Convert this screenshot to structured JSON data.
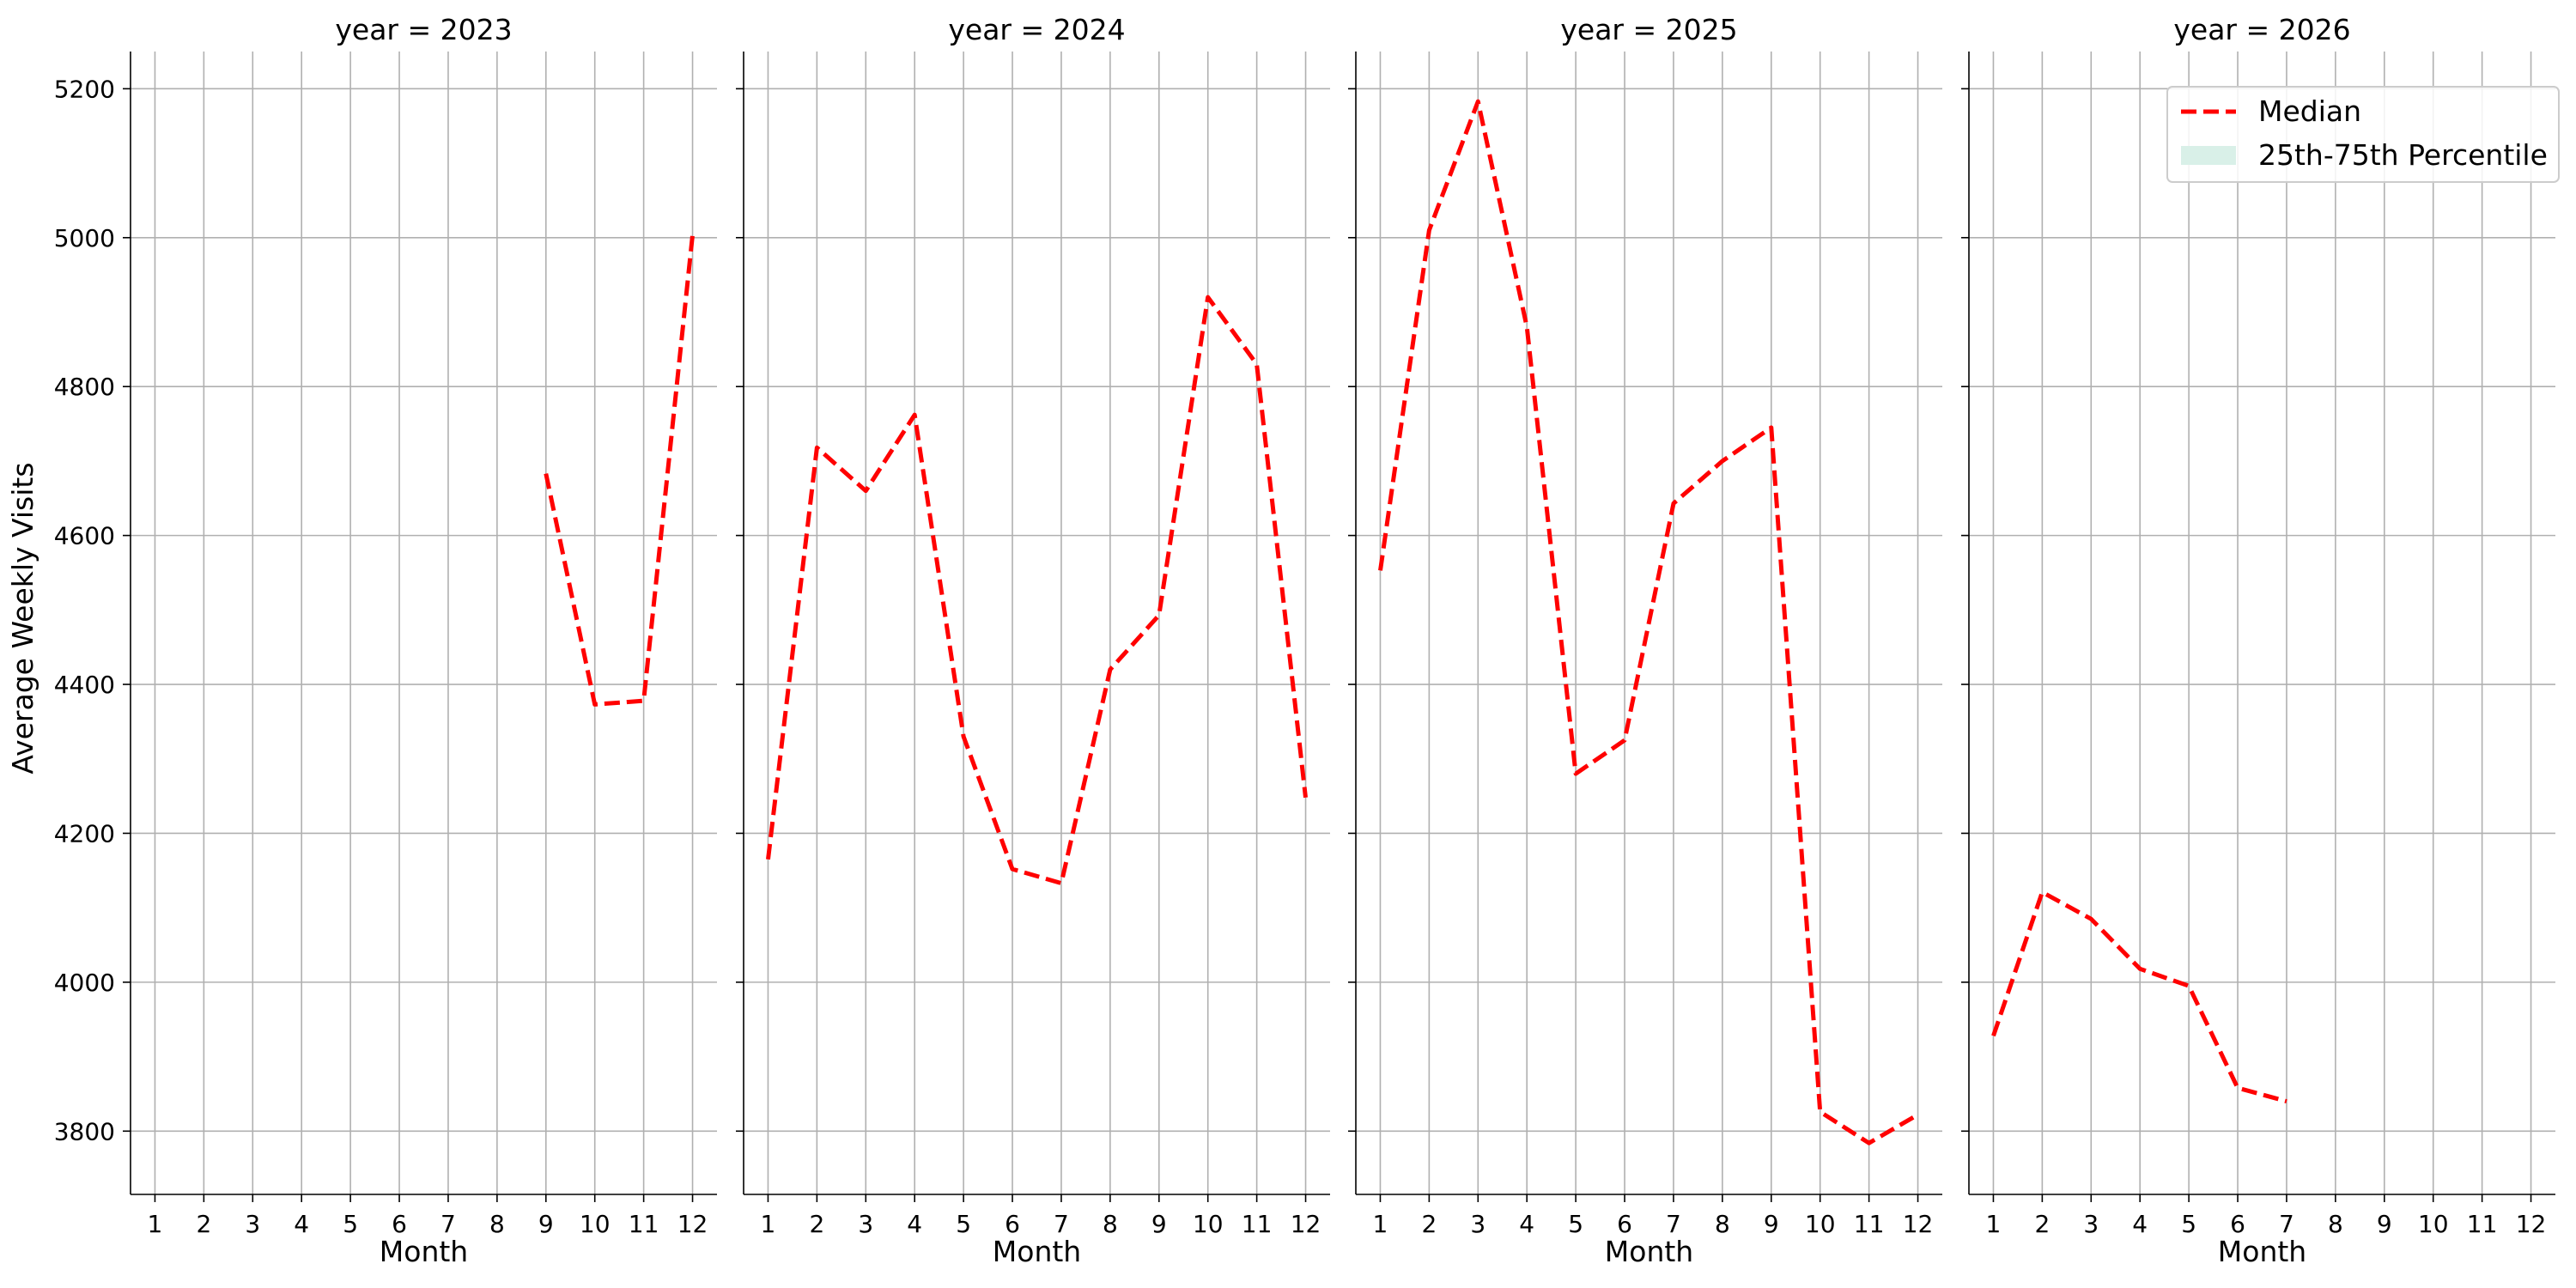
{
  "chart_data": {
    "type": "line",
    "facet_variable": "year",
    "ylabel": "Average Weekly Visits",
    "xlabel": "Month",
    "xlim": [
      0.5,
      12.5
    ],
    "ylim": [
      3715,
      5250
    ],
    "x_ticks": [
      1,
      2,
      3,
      4,
      5,
      6,
      7,
      8,
      9,
      10,
      11,
      12
    ],
    "y_ticks": [
      3800,
      4000,
      4200,
      4400,
      4600,
      4800,
      5000,
      5200
    ],
    "grid": true,
    "legend": {
      "placement": "top-right",
      "entries": [
        {
          "label": "Median",
          "color": "#ff0000",
          "style": "dashed-line"
        },
        {
          "label": "25th-75th Percentile",
          "color": "#d9f0e8",
          "style": "filled-patch"
        }
      ]
    },
    "panels": [
      {
        "title": "year = 2023",
        "series": [
          {
            "name": "Median",
            "x": [
              9,
              10,
              11,
              12
            ],
            "y": [
              4683,
              4373,
              4378,
              5003
            ]
          }
        ]
      },
      {
        "title": "year = 2024",
        "series": [
          {
            "name": "Median",
            "x": [
              1,
              2,
              3,
              4,
              5,
              6,
              7,
              8,
              9,
              10,
              11,
              12
            ],
            "y": [
              4165,
              4718,
              4660,
              4762,
              4330,
              4152,
              4133,
              4420,
              4493,
              4920,
              4830,
              4248
            ]
          }
        ]
      },
      {
        "title": "year = 2025",
        "series": [
          {
            "name": "Median",
            "x": [
              1,
              2,
              3,
              4,
              5,
              6,
              7,
              8,
              9,
              10,
              11,
              12
            ],
            "y": [
              4553,
              5010,
              5183,
              4880,
              4280,
              4325,
              4643,
              4700,
              4745,
              3826,
              3784,
              3822
            ]
          }
        ]
      },
      {
        "title": "year = 2026",
        "series": [
          {
            "name": "Median",
            "x": [
              1,
              2,
              3,
              4,
              5,
              6,
              7
            ],
            "y": [
              3928,
              4121,
              4085,
              4018,
              3995,
              3858,
              3840
            ]
          }
        ]
      }
    ]
  }
}
